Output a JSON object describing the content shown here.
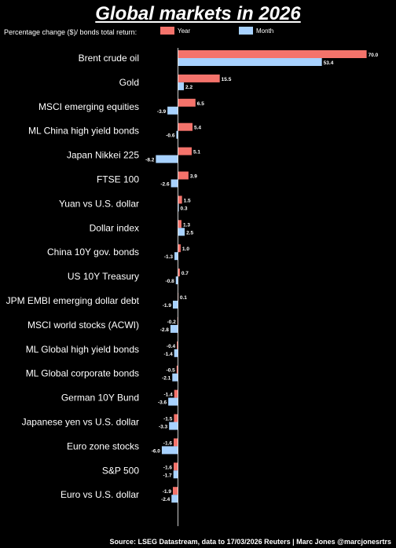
{
  "chart_data": {
    "type": "bar",
    "orientation": "horizontal",
    "title": "Global markets in 2026",
    "subtitle": "Percentage change ($)/ bonds total return:",
    "categories": [
      "Brent crude oil",
      "Gold",
      "MSCI emerging equities",
      "ML China high yield bonds",
      "Japan Nikkei 225",
      "FTSE 100",
      "Yuan vs U.S. dollar",
      "Dollar index",
      "China 10Y gov. bonds",
      "US 10Y Treasury",
      "JPM EMBI emerging dollar debt",
      "MSCI world stocks (ACWI)",
      "ML Global high yield bonds",
      "ML Global corporate bonds",
      "German 10Y Bund",
      "Japanese yen vs U.S. dollar",
      "Euro zone stocks",
      "S&P 500",
      "Euro vs U.S. dollar"
    ],
    "series": [
      {
        "name": "Year",
        "color": "#f4736b",
        "values": [
          70.0,
          15.5,
          6.5,
          5.4,
          5.1,
          3.9,
          1.5,
          1.3,
          1.0,
          0.7,
          0.1,
          -0.2,
          -0.4,
          -0.5,
          -1.4,
          -1.5,
          -1.6,
          -1.6,
          -1.9
        ]
      },
      {
        "name": "Month",
        "color": "#a8d2ff",
        "values": [
          53.4,
          2.2,
          -3.9,
          -0.6,
          -8.2,
          -2.6,
          0.3,
          2.5,
          -1.3,
          -0.8,
          -1.9,
          -2.8,
          -1.4,
          -2.1,
          -3.6,
          -3.3,
          -6.0,
          -1.7,
          -2.4
        ]
      }
    ],
    "labels": {
      "Year": [
        "70.0",
        "15.5",
        "6.5",
        "5.4",
        "5.1",
        "3.9",
        "1.5",
        "1.3",
        "1.0",
        "0.7",
        "0.1",
        "-0.2",
        "-0.4",
        "-0.5",
        "-1.4",
        "-1.5",
        "-1.6",
        "-1.6",
        "-1.9"
      ],
      "Month": [
        "53.4",
        "2.2",
        "-3.9",
        "-0.6",
        "-8.2",
        "-2.6",
        "0.3",
        "2.5",
        "-1.3",
        "-0.8",
        "-1.9",
        "-2.8",
        "-1.4",
        "-2.1",
        "-3.6",
        "-3.3",
        "-6.0",
        "-1.7",
        "-2.4"
      ]
    },
    "legend_position": "top",
    "grid": false
  },
  "source": "Source: LSEG Datastream, data to 17/03/2026  Reuters | Marc Jones @marcjonesrtrs"
}
